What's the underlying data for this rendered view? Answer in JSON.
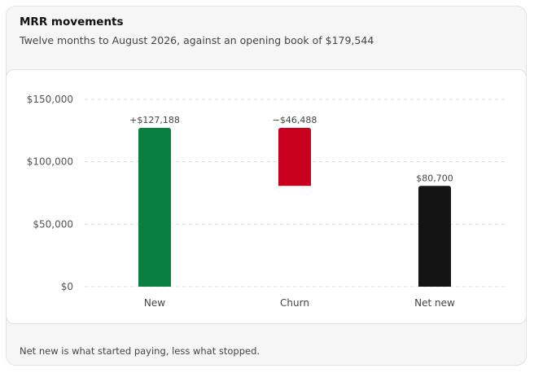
{
  "header": {
    "title": "MRR movements",
    "subtitle": "Twelve months to August 2026, against an opening book of $179,544"
  },
  "footer": {
    "note": "Net new is what started paying, less what stopped."
  },
  "colors": {
    "new": "#0a7f3f",
    "churn": "#c8001e",
    "net": "#141414",
    "grid": "#dddddd"
  },
  "chart_data": {
    "type": "bar",
    "variant": "waterfall",
    "categories": [
      "New",
      "Churn",
      "Net new"
    ],
    "values": [
      127188,
      -46488,
      80700
    ],
    "data_labels": [
      "+$127,188",
      "−$46,488",
      "$80,700"
    ],
    "ylim": [
      0,
      150000
    ],
    "yticks": [
      0,
      50000,
      100000,
      150000
    ],
    "ytick_labels": [
      "$0",
      "$50,000",
      "$100,000",
      "$150,000"
    ],
    "grid": true,
    "legend": "none"
  }
}
